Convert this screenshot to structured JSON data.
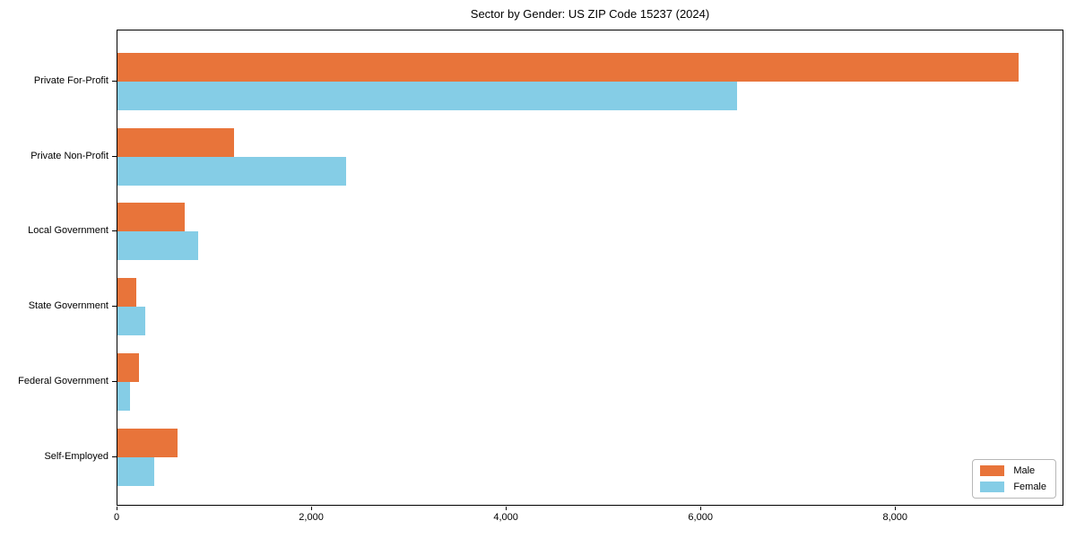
{
  "chart": {
    "title": "Sector by Gender: US ZIP Code 15237 (2024)"
  },
  "chart_data": {
    "type": "bar",
    "orientation": "horizontal",
    "title": "Sector by Gender: US ZIP Code 15237 (2024)",
    "categories": [
      "Private For-Profit",
      "Private Non-Profit",
      "Local Government",
      "State Government",
      "Federal Government",
      "Self-Employed"
    ],
    "series": [
      {
        "name": "Male",
        "color": "#e8743a",
        "values": [
          9260,
          1200,
          690,
          195,
          220,
          620
        ]
      },
      {
        "name": "Female",
        "color": "#85cde6",
        "values": [
          6370,
          2350,
          830,
          285,
          130,
          380
        ]
      }
    ],
    "xlabel": "",
    "ylabel": "",
    "xlim": [
      0,
      9730
    ],
    "xticks": [
      0,
      2000,
      4000,
      6000,
      8000
    ],
    "xtick_labels": [
      "0",
      "2,000",
      "4,000",
      "6,000",
      "8,000"
    ],
    "legend_position": "lower right",
    "grid": false,
    "background": "#ffffff",
    "frame_color": "#000000"
  }
}
